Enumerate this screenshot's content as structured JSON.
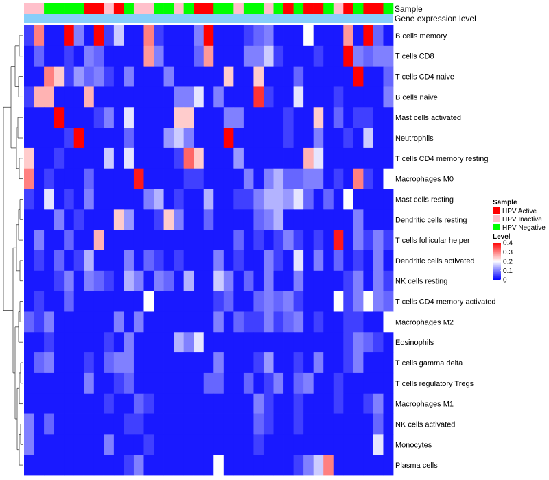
{
  "chart_data": {
    "type": "heatmap",
    "annotation_tracks": [
      "Sample",
      "Gene expression level"
    ],
    "rows": [
      "B cells memory",
      "T cells CD8",
      "T cells CD4 naive",
      "B cells naive",
      "Mast cells activated",
      "Neutrophils",
      "T cells CD4 memory resting",
      "Macrophages M0",
      "Mast cells resting",
      "Dendritic cells resting",
      "T cells follicular helper",
      "Dendritic cells activated",
      "NK cells resting",
      "T cells CD4 memory activated",
      "Macrophages M2",
      "Eosinophils",
      "T cells gamma delta",
      "T cells regulatory  Tregs",
      "Macrophages M1",
      "NK cells activated",
      "Monocytes",
      "Plasma cells"
    ],
    "sample_groups": [
      "HPV Inactive",
      "HPV Inactive",
      "HPV Negative",
      "HPV Negative",
      "HPV Negative",
      "HPV Negative",
      "HPV Active",
      "HPV Active",
      "HPV Inactive",
      "HPV Active",
      "HPV Negative",
      "HPV Inactive",
      "HPV Inactive",
      "HPV Negative",
      "HPV Negative",
      "HPV Inactive",
      "HPV Negative",
      "HPV Active",
      "HPV Active",
      "HPV Negative",
      "HPV Negative",
      "HPV Inactive",
      "HPV Negative",
      "HPV Negative",
      "HPV Inactive",
      "HPV Negative",
      "HPV Active",
      "HPV Negative",
      "HPV Active",
      "HPV Active",
      "HPV Negative",
      "HPV Inactive",
      "HPV Active",
      "HPV Negative",
      "HPV Active",
      "HPV Active",
      "HPV Negative"
    ],
    "values": [
      [
        0.05,
        0.3,
        0.02,
        0.02,
        0.4,
        0.1,
        0.02,
        0.4,
        0.05,
        0.16,
        0.02,
        0.02,
        0.3,
        0.05,
        0.02,
        0.02,
        0.02,
        0.1,
        0.4,
        0.02,
        0.02,
        0.02,
        0.05,
        0.08,
        0.1,
        0.02,
        0.02,
        0.02,
        0.2,
        0.02,
        0.02,
        0.02,
        0.28,
        0.02,
        0.4,
        0.08,
        0.02
      ],
      [
        0.02,
        0.08,
        0.02,
        0.02,
        0.05,
        0.02,
        0.1,
        0.08,
        0.02,
        0.02,
        0.02,
        0.02,
        0.28,
        0.1,
        0.02,
        0.02,
        0.02,
        0.08,
        0.28,
        0.02,
        0.02,
        0.02,
        0.1,
        0.1,
        0.16,
        0.05,
        0.02,
        0.02,
        0.02,
        0.05,
        0.02,
        0.02,
        0.4,
        0.1,
        0.08,
        0.1,
        0.1
      ],
      [
        0.02,
        0.02,
        0.3,
        0.24,
        0.05,
        0.12,
        0.08,
        0.1,
        0.05,
        0.02,
        0.1,
        0.02,
        0.02,
        0.02,
        0.1,
        0.02,
        0.02,
        0.02,
        0.02,
        0.02,
        0.24,
        0.02,
        0.02,
        0.24,
        0.02,
        0.02,
        0.02,
        0.08,
        0.02,
        0.02,
        0.02,
        0.02,
        0.02,
        0.4,
        0.02,
        0.02,
        0.08
      ],
      [
        0.05,
        0.26,
        0.26,
        0.02,
        0.02,
        0.02,
        0.26,
        0.02,
        0.02,
        0.02,
        0.02,
        0.02,
        0.02,
        0.02,
        0.02,
        0.1,
        0.1,
        0.18,
        0.02,
        0.1,
        0.02,
        0.02,
        0.02,
        0.36,
        0.05,
        0.02,
        0.02,
        0.18,
        0.02,
        0.02,
        0.02,
        0.05,
        0.02,
        0.02,
        0.02,
        0.02,
        0.1
      ],
      [
        0.02,
        0.02,
        0.02,
        0.4,
        0.02,
        0.02,
        0.02,
        0.05,
        0.1,
        0.02,
        0.18,
        0.02,
        0.02,
        0.02,
        0.02,
        0.24,
        0.24,
        0.02,
        0.02,
        0.02,
        0.1,
        0.1,
        0.02,
        0.02,
        0.02,
        0.02,
        0.05,
        0.02,
        0.02,
        0.24,
        0.02,
        0.08,
        0.02,
        0.05,
        0.05,
        0.02,
        0.02
      ],
      [
        0.02,
        0.02,
        0.02,
        0.02,
        0.05,
        0.4,
        0.02,
        0.02,
        0.02,
        0.02,
        0.08,
        0.02,
        0.02,
        0.02,
        0.12,
        0.16,
        0.1,
        0.02,
        0.02,
        0.02,
        0.4,
        0.02,
        0.02,
        0.02,
        0.02,
        0.02,
        0.05,
        0.02,
        0.02,
        0.1,
        0.02,
        0.02,
        0.05,
        0.02,
        0.16,
        0.02,
        0.02
      ],
      [
        0.24,
        0.02,
        0.02,
        0.05,
        0.02,
        0.02,
        0.02,
        0.02,
        0.16,
        0.02,
        0.18,
        0.02,
        0.02,
        0.02,
        0.02,
        0.05,
        0.32,
        0.24,
        0.02,
        0.02,
        0.02,
        0.12,
        0.02,
        0.02,
        0.02,
        0.02,
        0.02,
        0.02,
        0.26,
        0.18,
        0.02,
        0.02,
        0.02,
        0.02,
        0.02,
        0.02,
        0.02
      ],
      [
        0.3,
        0.02,
        0.05,
        0.02,
        0.02,
        0.02,
        0.08,
        0.02,
        0.02,
        0.02,
        0.02,
        0.38,
        0.02,
        0.02,
        0.02,
        0.02,
        0.05,
        0.05,
        0.02,
        0.02,
        0.02,
        0.02,
        0.1,
        0.02,
        0.1,
        0.14,
        0.08,
        0.08,
        0.1,
        0.1,
        0.02,
        0.05,
        0.02,
        0.3,
        0.05,
        0.02,
        0.2
      ],
      [
        0.05,
        0.02,
        0.18,
        0.02,
        0.05,
        0.02,
        0.1,
        0.02,
        0.02,
        0.02,
        0.02,
        0.02,
        0.1,
        0.14,
        0.02,
        0.05,
        0.02,
        0.02,
        0.14,
        0.02,
        0.02,
        0.05,
        0.05,
        0.1,
        0.14,
        0.14,
        0.12,
        0.18,
        0.08,
        0.02,
        0.08,
        0.02,
        0.2,
        0.02,
        0.02,
        0.02,
        0.02
      ],
      [
        0.02,
        0.02,
        0.02,
        0.1,
        0.02,
        0.05,
        0.02,
        0.02,
        0.02,
        0.24,
        0.12,
        0.02,
        0.02,
        0.05,
        0.24,
        0.1,
        0.02,
        0.02,
        0.08,
        0.02,
        0.02,
        0.02,
        0.02,
        0.08,
        0.1,
        0.14,
        0.02,
        0.02,
        0.02,
        0.02,
        0.02,
        0.02,
        0.02,
        0.1,
        0.02,
        0.02,
        0.02
      ],
      [
        0.02,
        0.1,
        0.02,
        0.02,
        0.08,
        0.02,
        0.02,
        0.26,
        0.02,
        0.02,
        0.02,
        0.02,
        0.02,
        0.02,
        0.02,
        0.02,
        0.02,
        0.02,
        0.02,
        0.02,
        0.02,
        0.08,
        0.02,
        0.05,
        0.02,
        0.05,
        0.1,
        0.05,
        0.02,
        0.05,
        0.02,
        0.38,
        0.02,
        0.1,
        0.05,
        0.1,
        0.05
      ],
      [
        0.02,
        0.05,
        0.02,
        0.08,
        0.02,
        0.05,
        0.14,
        0.02,
        0.02,
        0.02,
        0.1,
        0.02,
        0.08,
        0.05,
        0.02,
        0.05,
        0.02,
        0.02,
        0.02,
        0.1,
        0.02,
        0.05,
        0.02,
        0.02,
        0.1,
        0.05,
        0.02,
        0.18,
        0.02,
        0.1,
        0.02,
        0.08,
        0.02,
        0.05,
        0.02,
        0.1,
        0.02
      ],
      [
        0.02,
        0.02,
        0.02,
        0.05,
        0.1,
        0.02,
        0.1,
        0.08,
        0.05,
        0.02,
        0.14,
        0.1,
        0.02,
        0.1,
        0.08,
        0.02,
        0.14,
        0.02,
        0.02,
        0.16,
        0.1,
        0.02,
        0.08,
        0.02,
        0.1,
        0.02,
        0.02,
        0.1,
        0.02,
        0.02,
        0.02,
        0.02,
        0.05,
        0.1,
        0.02,
        0.1,
        0.05
      ],
      [
        0.02,
        0.05,
        0.02,
        0.02,
        0.08,
        0.02,
        0.02,
        0.02,
        0.02,
        0.02,
        0.02,
        0.02,
        0.2,
        0.02,
        0.02,
        0.02,
        0.02,
        0.02,
        0.02,
        0.05,
        0.08,
        0.02,
        0.02,
        0.08,
        0.1,
        0.08,
        0.1,
        0.05,
        0.02,
        0.02,
        0.02,
        0.2,
        0.05,
        0.1,
        0.2,
        0.1,
        0.08
      ],
      [
        0.08,
        0.05,
        0.1,
        0.02,
        0.02,
        0.02,
        0.02,
        0.02,
        0.02,
        0.1,
        0.02,
        0.1,
        0.02,
        0.02,
        0.02,
        0.02,
        0.02,
        0.02,
        0.02,
        0.1,
        0.02,
        0.08,
        0.05,
        0.05,
        0.1,
        0.05,
        0.08,
        0.1,
        0.02,
        0.05,
        0.02,
        0.02,
        0.05,
        0.05,
        0.02,
        0.02,
        0.2
      ],
      [
        0.02,
        0.02,
        0.05,
        0.02,
        0.02,
        0.02,
        0.02,
        0.02,
        0.05,
        0.02,
        0.1,
        0.02,
        0.02,
        0.02,
        0.02,
        0.14,
        0.1,
        0.18,
        0.02,
        0.02,
        0.02,
        0.02,
        0.02,
        0.02,
        0.02,
        0.02,
        0.02,
        0.02,
        0.02,
        0.02,
        0.02,
        0.02,
        0.05,
        0.1,
        0.08,
        0.05,
        0.02
      ],
      [
        0.02,
        0.08,
        0.1,
        0.02,
        0.02,
        0.02,
        0.05,
        0.02,
        0.08,
        0.1,
        0.1,
        0.02,
        0.02,
        0.02,
        0.02,
        0.02,
        0.02,
        0.02,
        0.02,
        0.1,
        0.02,
        0.02,
        0.02,
        0.05,
        0.12,
        0.02,
        0.02,
        0.05,
        0.02,
        0.1,
        0.02,
        0.02,
        0.05,
        0.1,
        0.02,
        0.02,
        0.02
      ],
      [
        0.02,
        0.02,
        0.02,
        0.02,
        0.02,
        0.02,
        0.1,
        0.02,
        0.02,
        0.05,
        0.08,
        0.02,
        0.02,
        0.02,
        0.02,
        0.02,
        0.02,
        0.02,
        0.08,
        0.08,
        0.02,
        0.02,
        0.08,
        0.02,
        0.05,
        0.1,
        0.02,
        0.08,
        0.1,
        0.02,
        0.02,
        0.05,
        0.02,
        0.02,
        0.02,
        0.02,
        0.02
      ],
      [
        0.02,
        0.02,
        0.02,
        0.02,
        0.02,
        0.02,
        0.02,
        0.02,
        0.05,
        0.02,
        0.02,
        0.08,
        0.05,
        0.02,
        0.02,
        0.02,
        0.02,
        0.02,
        0.02,
        0.02,
        0.02,
        0.02,
        0.02,
        0.1,
        0.05,
        0.02,
        0.02,
        0.05,
        0.02,
        0.02,
        0.02,
        0.05,
        0.02,
        0.02,
        0.05,
        0.1,
        0.02
      ],
      [
        0.1,
        0.02,
        0.08,
        0.02,
        0.02,
        0.02,
        0.02,
        0.02,
        0.02,
        0.02,
        0.05,
        0.05,
        0.02,
        0.02,
        0.02,
        0.02,
        0.02,
        0.02,
        0.02,
        0.02,
        0.02,
        0.02,
        0.02,
        0.08,
        0.05,
        0.02,
        0.02,
        0.05,
        0.02,
        0.02,
        0.02,
        0.02,
        0.02,
        0.02,
        0.02,
        0.08,
        0.02
      ],
      [
        0.1,
        0.02,
        0.02,
        0.02,
        0.02,
        0.02,
        0.02,
        0.02,
        0.1,
        0.02,
        0.02,
        0.02,
        0.05,
        0.02,
        0.02,
        0.02,
        0.02,
        0.02,
        0.02,
        0.02,
        0.02,
        0.02,
        0.02,
        0.05,
        0.02,
        0.02,
        0.02,
        0.02,
        0.02,
        0.02,
        0.02,
        0.02,
        0.02,
        0.02,
        0.02,
        0.18,
        0.02
      ],
      [
        0.02,
        0.02,
        0.02,
        0.02,
        0.02,
        0.02,
        0.02,
        0.02,
        0.02,
        0.02,
        0.05,
        0.1,
        0.02,
        0.02,
        0.02,
        0.02,
        0.02,
        0.02,
        0.02,
        0.2,
        0.02,
        0.02,
        0.02,
        0.02,
        0.02,
        0.02,
        0.02,
        0.05,
        0.1,
        0.16,
        0.3,
        0.02,
        0.02,
        0.02,
        0.02,
        0.02,
        0.02
      ]
    ],
    "color_scale": {
      "min": 0,
      "max": 0.4,
      "low": "#0000ff",
      "mid": "#ffffff",
      "high": "#ff0000"
    },
    "legend": {
      "sample_title": "Sample",
      "sample_items": [
        {
          "label": "HPV Active",
          "color": "#ff0000"
        },
        {
          "label": "HPV Inactive",
          "color": "#ffc0cb"
        },
        {
          "label": "HPV Negative",
          "color": "#00ff00"
        }
      ],
      "level_title": "Level",
      "level_ticks": [
        "0.4",
        "0.3",
        "0.2",
        "0.1",
        "0"
      ]
    },
    "expression_track_color": "#87cefa"
  }
}
